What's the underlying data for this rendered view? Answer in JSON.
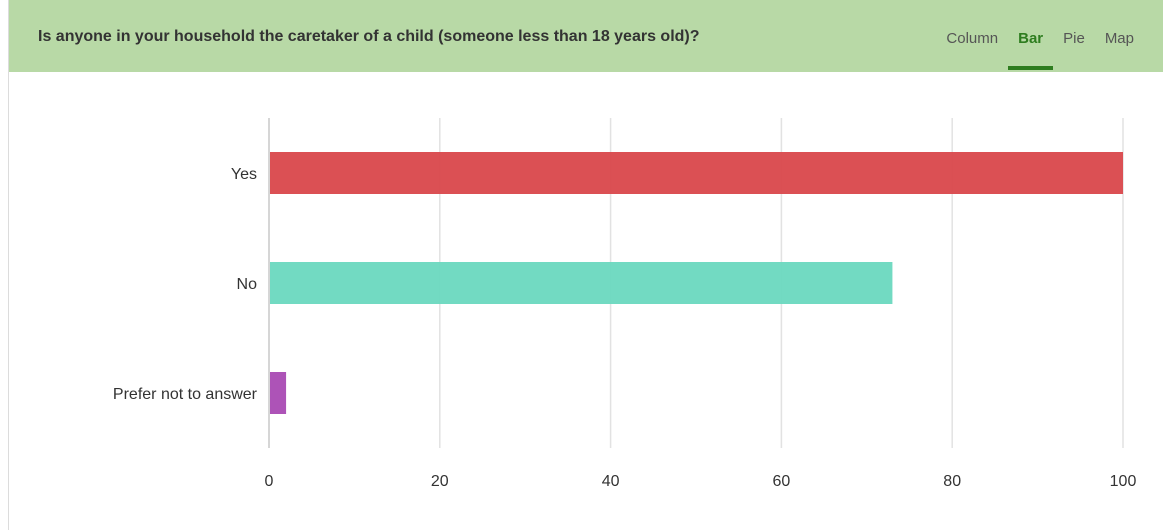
{
  "header": {
    "question": "Is anyone in your household the caretaker of a child (someone less than 18 years old)?",
    "tabs": [
      {
        "label": "Column",
        "active": false
      },
      {
        "label": "Bar",
        "active": true
      },
      {
        "label": "Pie",
        "active": false
      },
      {
        "label": "Map",
        "active": false
      }
    ]
  },
  "colors": {
    "header_bg": "#b8d9a6",
    "active_tab": "#2e7d1f"
  },
  "chart_data": {
    "type": "bar",
    "orientation": "horizontal",
    "categories": [
      "Yes",
      "No",
      "Prefer not to answer"
    ],
    "values": [
      100,
      73,
      2
    ],
    "colors": [
      "#d9474b",
      "#6ad8bf",
      "#a94ab3"
    ],
    "xlim": [
      0,
      100
    ],
    "x_ticks": [
      0,
      20,
      40,
      60,
      80,
      100
    ],
    "grid": true,
    "title": "",
    "xlabel": "",
    "ylabel": ""
  }
}
